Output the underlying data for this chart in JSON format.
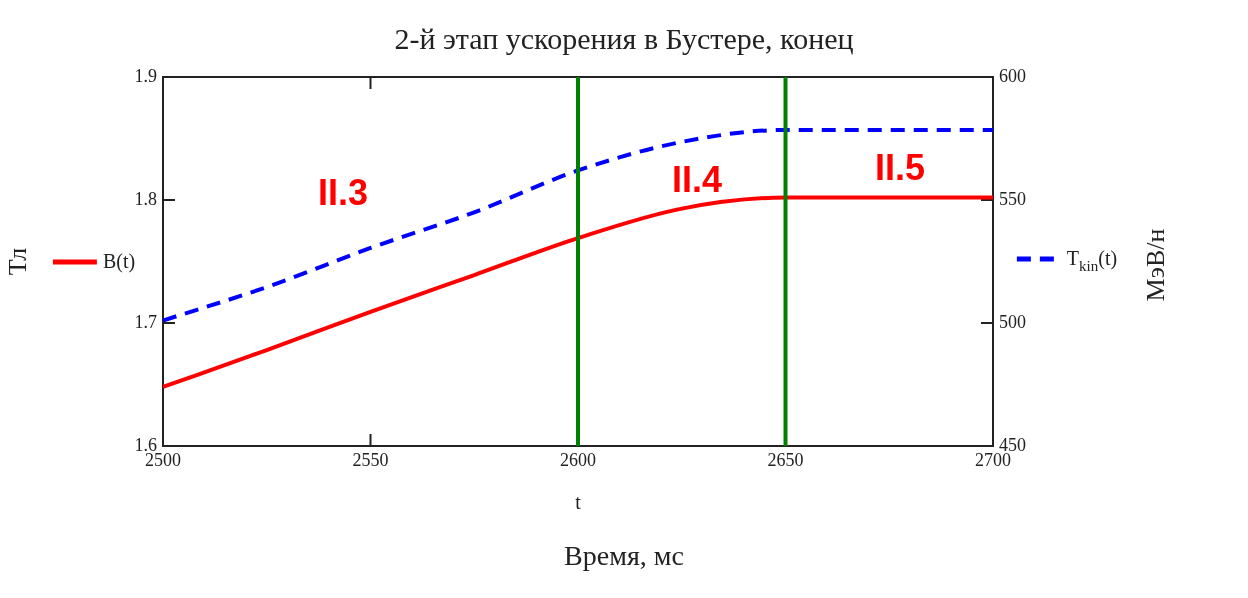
{
  "chart_data": {
    "type": "line",
    "title": "2-й этап ускорения в Бустере, конец",
    "xlabel": "t",
    "ylabel": "Тл",
    "y2label": "МэВ/н",
    "x": [
      2500,
      2525,
      2550,
      2575,
      2600,
      2625,
      2650,
      2675,
      2700
    ],
    "series": [
      {
        "name": "B(t)",
        "color": "#ff0000",
        "line_style": "solid",
        "values": [
          1.648,
          1.678,
          1.709,
          1.739,
          1.769,
          1.793,
          1.802,
          1.802,
          1.802
        ]
      },
      {
        "name": "T$_{kin}$(t)",
        "color": "#0000ff",
        "line_style": "dashed",
        "axis": "y2",
        "values": [
          501,
          514.6,
          530.5,
          545,
          562,
          573.6,
          578.5,
          578.5,
          578.5
        ]
      }
    ],
    "xlim": [
      2500,
      2700
    ],
    "xticks": [
      2500,
      2550,
      2600,
      2650,
      2700
    ],
    "ylim": [
      1.6,
      1.9
    ],
    "yticks": [
      1.6,
      1.7,
      1.8,
      1.9
    ],
    "y2lim": [
      450,
      600
    ],
    "y2ticks": [
      450,
      500,
      550,
      600
    ],
    "ref_lines": [
      {
        "axis": "x",
        "value": 2600,
        "color": "#008000"
      },
      {
        "axis": "x",
        "value": 2650,
        "color": "#008000"
      }
    ],
    "annotations": [
      "II.3",
      "II.4",
      "II.5",
      "Время, мс"
    ],
    "legend": "left",
    "grid": false,
    "marker": "none"
  }
}
